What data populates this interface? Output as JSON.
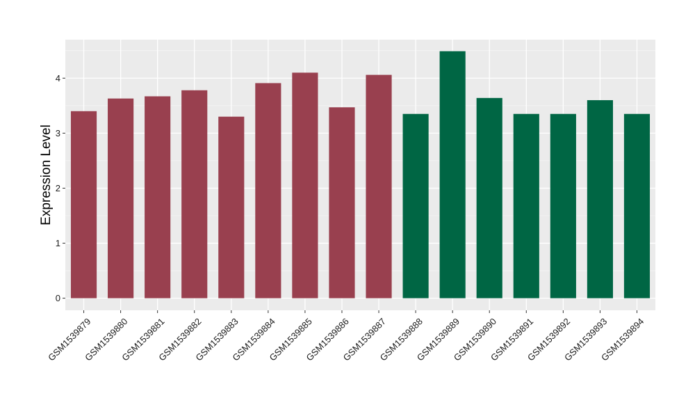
{
  "chart_data": {
    "type": "bar",
    "ylabel": "Expression Level",
    "xlabel": "",
    "ylim": [
      -0.22,
      4.7
    ],
    "yticks": [
      0,
      1,
      2,
      3,
      4
    ],
    "grid": true,
    "legend": "none",
    "categories": [
      "GSM1539879",
      "GSM1539880",
      "GSM1539881",
      "GSM1539882",
      "GSM1539883",
      "GSM1539884",
      "GSM1539885",
      "GSM1539886",
      "GSM1539887",
      "GSM1539888",
      "GSM1539889",
      "GSM1539890",
      "GSM1539891",
      "GSM1539892",
      "GSM1539893",
      "GSM1539894"
    ],
    "values": [
      3.4,
      3.63,
      3.67,
      3.78,
      3.3,
      3.91,
      4.1,
      3.47,
      4.06,
      3.35,
      4.49,
      3.64,
      3.35,
      3.35,
      3.6,
      3.35
    ],
    "group_index": [
      0,
      0,
      0,
      0,
      0,
      0,
      0,
      0,
      0,
      1,
      1,
      1,
      1,
      1,
      1,
      1
    ],
    "colors": {
      "group_colors": [
        "#99404f",
        "#006644"
      ],
      "panel_background": "#ebebeb",
      "grid_major": "#ffffff",
      "grid_minor": "#f5f5f5",
      "tick_text": "#1a1a1a",
      "axis_title": "#000000"
    }
  }
}
